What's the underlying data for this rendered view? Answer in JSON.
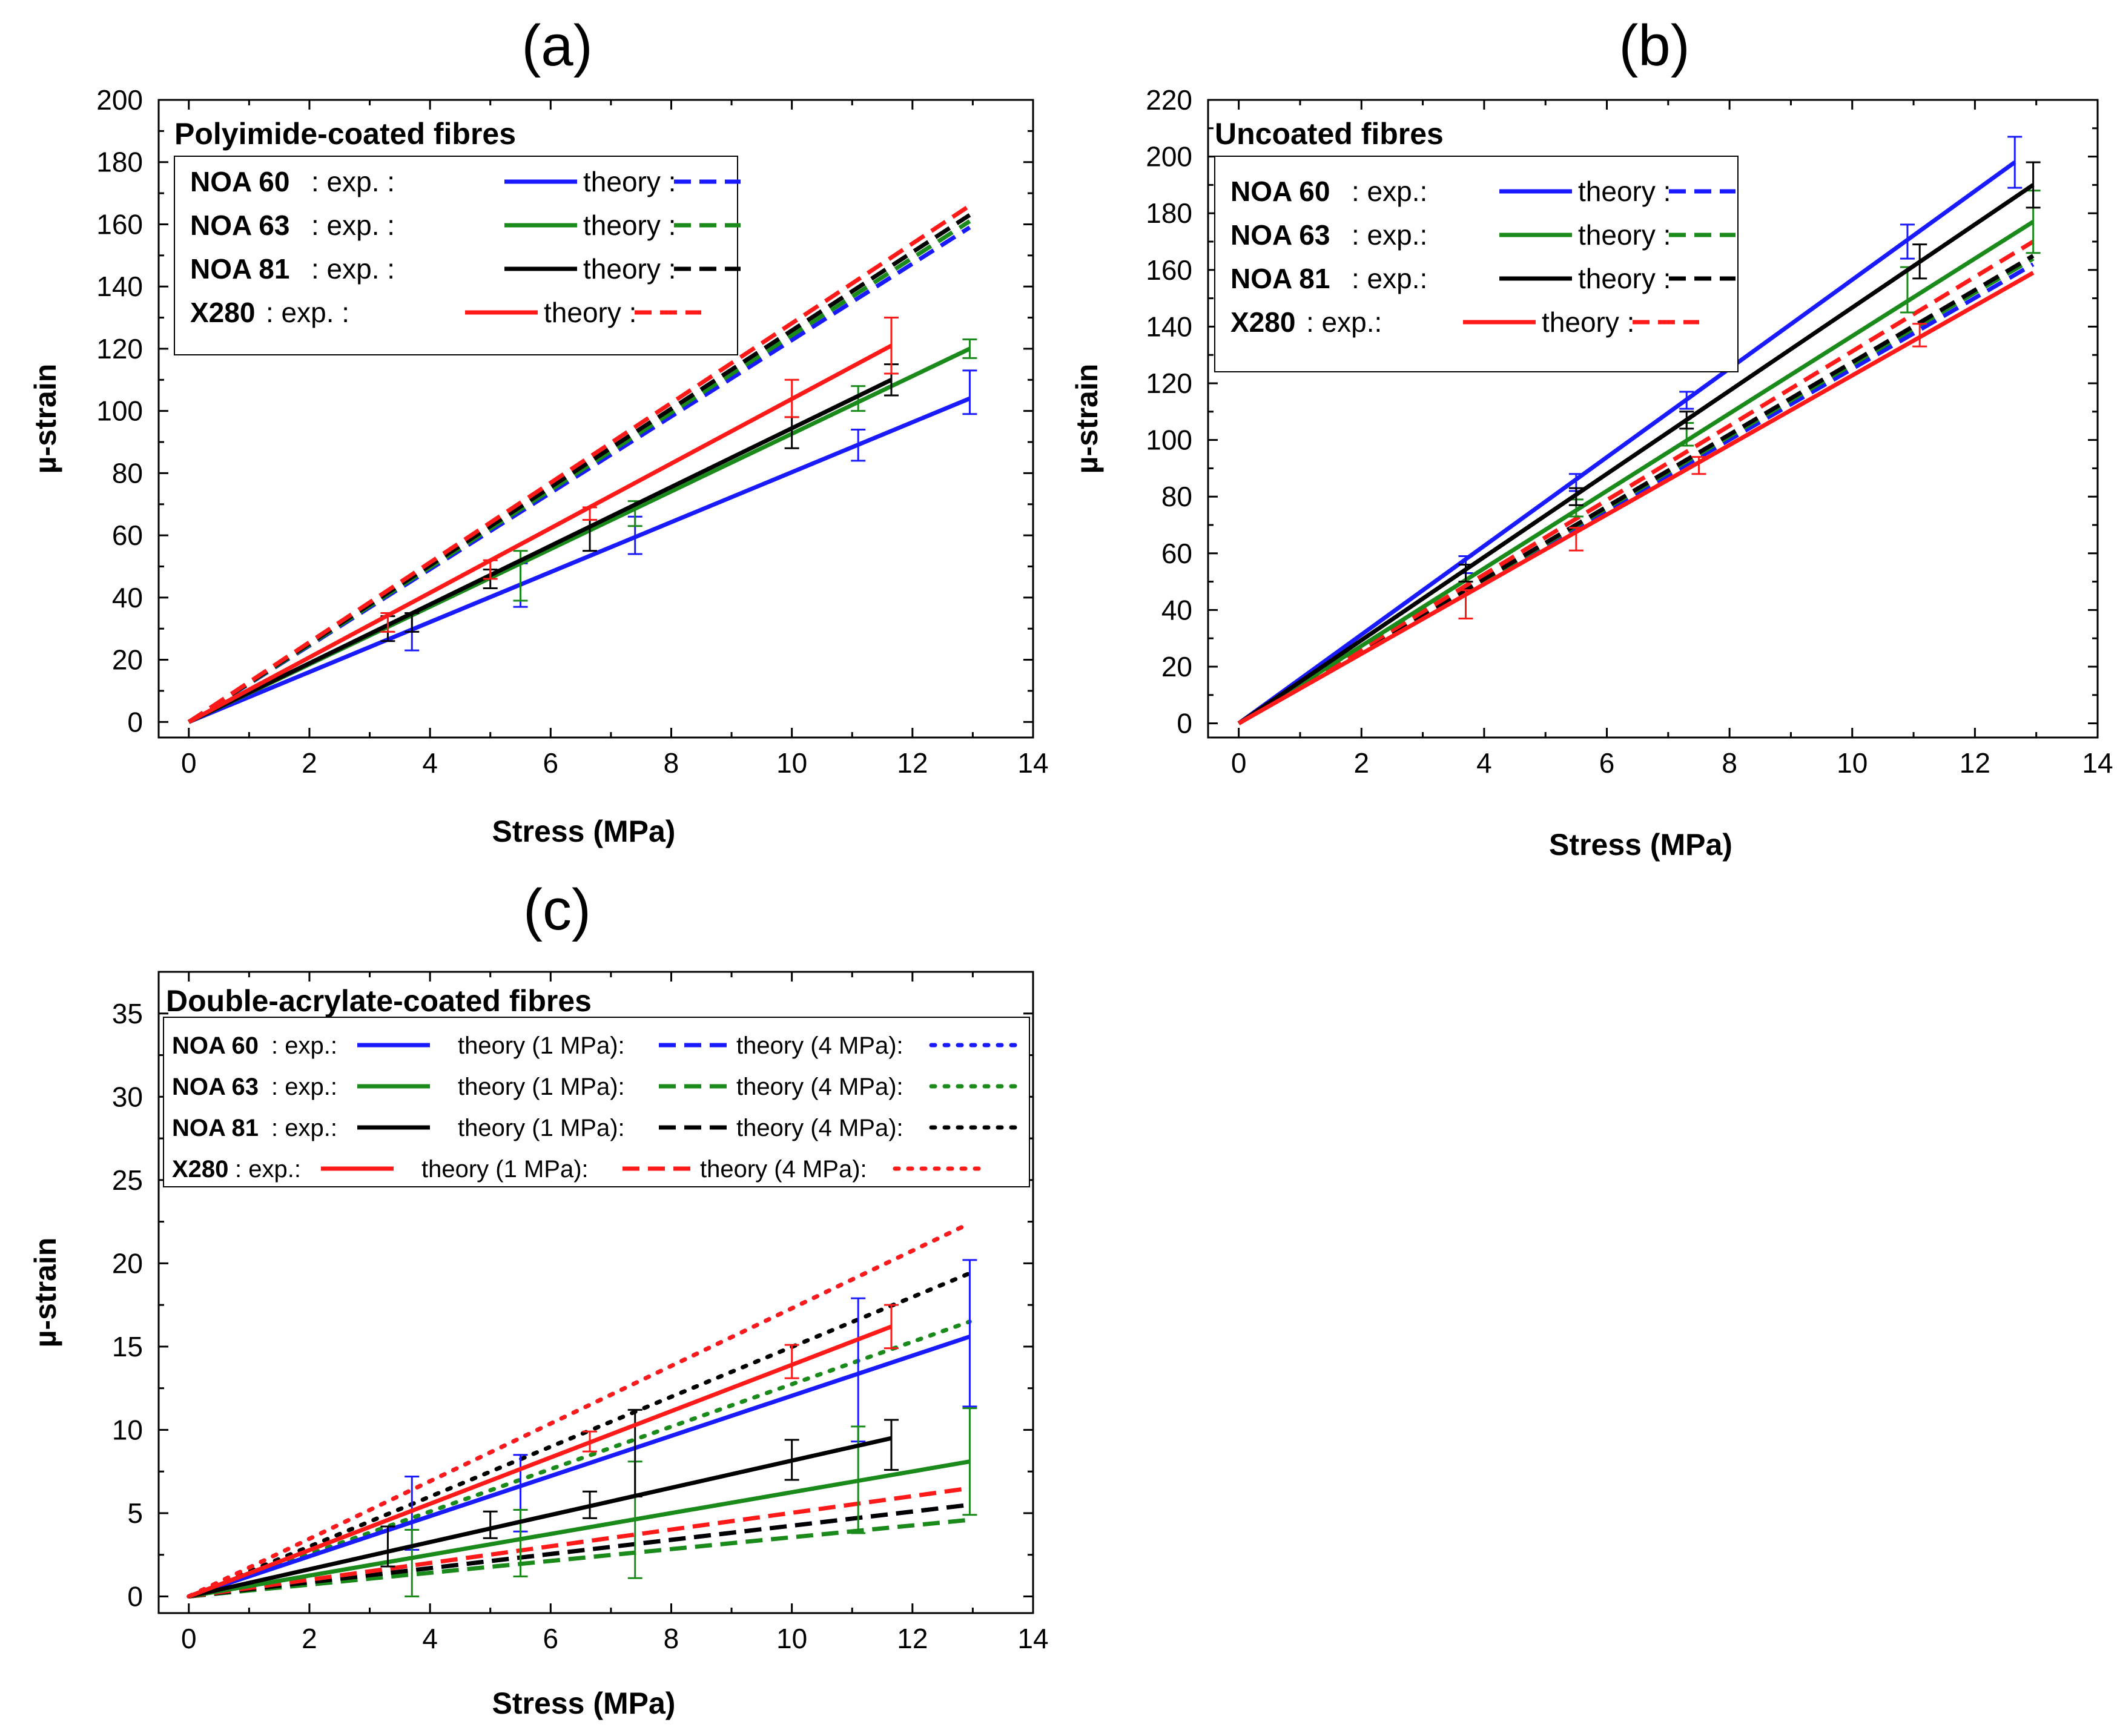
{
  "chart_data": [
    {
      "id": "a",
      "type": "line",
      "panel_label": "(a)",
      "title": "Polyimide-coated fibres",
      "xlabel": "Stress (MPa)",
      "ylabel": "µ-strain",
      "xlim": [
        -0.5,
        14
      ],
      "ylim": [
        -5,
        200
      ],
      "xticks": [
        0,
        2,
        4,
        6,
        8,
        10,
        12,
        14
      ],
      "yticks": [
        0,
        20,
        40,
        60,
        80,
        100,
        120,
        140,
        160,
        180,
        200
      ],
      "legend": [
        {
          "name": "NOA 60",
          "exp": ": exp. :",
          "theory": "theory :",
          "color": "#1a1aff"
        },
        {
          "name": "NOA 63",
          "exp": ": exp. :",
          "theory": "theory :",
          "color": "#1a8a1a"
        },
        {
          "name": "NOA 81",
          "exp": ": exp. :",
          "theory": "theory :",
          "color": "#000000"
        },
        {
          "name": "X280",
          "exp": ": exp. :",
          "theory": "theory :",
          "color": "#ff1a1a"
        }
      ],
      "series": [
        {
          "name": "NOA 60 exp.",
          "color": "#1a1aff",
          "style": "solid",
          "x": [
            0,
            12.95
          ],
          "y": [
            0,
            104
          ],
          "errorbars": [
            {
              "x": 3.7,
              "y": 29,
              "err": 6
            },
            {
              "x": 5.5,
              "y": 44,
              "err": 7
            },
            {
              "x": 7.4,
              "y": 60,
              "err": 6
            },
            {
              "x": 11.1,
              "y": 89,
              "err": 5
            },
            {
              "x": 12.95,
              "y": 106,
              "err": 7
            }
          ]
        },
        {
          "name": "NOA 63 exp.",
          "color": "#1a8a1a",
          "style": "solid",
          "x": [
            0,
            12.95
          ],
          "y": [
            0,
            120
          ],
          "errorbars": [
            {
              "x": 5.5,
              "y": 47,
              "err": 8
            },
            {
              "x": 7.4,
              "y": 67,
              "err": 4
            },
            {
              "x": 11.1,
              "y": 104,
              "err": 4
            },
            {
              "x": 12.95,
              "y": 120,
              "err": 3
            }
          ]
        },
        {
          "name": "NOA 81 exp.",
          "color": "#000000",
          "style": "solid",
          "x": [
            0,
            11.65
          ],
          "y": [
            0,
            110
          ],
          "errorbars": [
            {
              "x": 3.3,
              "y": 30,
              "err": 4
            },
            {
              "x": 3.7,
              "y": 32,
              "err": 3
            },
            {
              "x": 5,
              "y": 46,
              "err": 3
            },
            {
              "x": 6.65,
              "y": 60,
              "err": 5
            },
            {
              "x": 10,
              "y": 93,
              "err": 5
            },
            {
              "x": 11.65,
              "y": 110,
              "err": 5
            }
          ]
        },
        {
          "name": "X280 exp.",
          "color": "#ff1a1a",
          "style": "solid",
          "x": [
            0,
            11.65
          ],
          "y": [
            0,
            121
          ],
          "errorbars": [
            {
              "x": 3.3,
              "y": 32,
              "err": 3
            },
            {
              "x": 5,
              "y": 49,
              "err": 3
            },
            {
              "x": 6.65,
              "y": 67,
              "err": 2
            },
            {
              "x": 10,
              "y": 104,
              "err": 6
            },
            {
              "x": 11.65,
              "y": 121,
              "err": 9
            }
          ]
        },
        {
          "name": "NOA 60 theory",
          "color": "#1a1aff",
          "style": "dash",
          "x": [
            0,
            12.95
          ],
          "y": [
            0,
            159
          ]
        },
        {
          "name": "NOA 63 theory",
          "color": "#1a8a1a",
          "style": "dash",
          "x": [
            0,
            12.95
          ],
          "y": [
            0,
            161
          ]
        },
        {
          "name": "NOA 81 theory",
          "color": "#000000",
          "style": "dash",
          "x": [
            0,
            12.95
          ],
          "y": [
            0,
            163
          ]
        },
        {
          "name": "X280 theory",
          "color": "#ff1a1a",
          "style": "dash",
          "x": [
            0,
            12.95
          ],
          "y": [
            0,
            166
          ]
        }
      ]
    },
    {
      "id": "b",
      "type": "line",
      "panel_label": "(b)",
      "title": "Uncoated fibres",
      "xlabel": "Stress (MPa)",
      "ylabel": "µ-strain",
      "xlim": [
        -0.5,
        14
      ],
      "ylim": [
        -5,
        220
      ],
      "xticks": [
        0,
        2,
        4,
        6,
        8,
        10,
        12,
        14
      ],
      "yticks": [
        0,
        20,
        40,
        60,
        80,
        100,
        120,
        140,
        160,
        180,
        200,
        220
      ],
      "legend": [
        {
          "name": "NOA 60",
          "exp": ": exp.:",
          "theory": "theory :",
          "color": "#1a1aff"
        },
        {
          "name": "NOA 63",
          "exp": ": exp.:",
          "theory": "theory :",
          "color": "#1a8a1a"
        },
        {
          "name": "NOA 81",
          "exp": ": exp.:",
          "theory": "theory :",
          "color": "#000000"
        },
        {
          "name": "X280",
          "exp": ": exp.:",
          "theory": "theory :",
          "color": "#ff1a1a"
        }
      ],
      "series": [
        {
          "name": "NOA 60 exp.",
          "color": "#1a1aff",
          "style": "solid",
          "x": [
            0,
            12.65
          ],
          "y": [
            0,
            198
          ],
          "errorbars": [
            {
              "x": 3.7,
              "y": 56,
              "err": 3
            },
            {
              "x": 5.5,
              "y": 85,
              "err": 3
            },
            {
              "x": 7.3,
              "y": 114,
              "err": 3
            },
            {
              "x": 10.9,
              "y": 170,
              "err": 6
            },
            {
              "x": 12.65,
              "y": 198,
              "err": 9
            }
          ]
        },
        {
          "name": "NOA 63 exp.",
          "color": "#1a8a1a",
          "style": "solid",
          "x": [
            0,
            12.95
          ],
          "y": [
            0,
            177
          ],
          "errorbars": [
            {
              "x": 5.5,
              "y": 76,
              "err": 3
            },
            {
              "x": 7.3,
              "y": 102,
              "err": 4
            },
            {
              "x": 10.9,
              "y": 153,
              "err": 8
            },
            {
              "x": 12.95,
              "y": 177,
              "err": 11
            }
          ]
        },
        {
          "name": "NOA 81 exp.",
          "color": "#000000",
          "style": "solid",
          "x": [
            0,
            12.95
          ],
          "y": [
            0,
            190
          ],
          "errorbars": [
            {
              "x": 3.7,
              "y": 53,
              "err": 3
            },
            {
              "x": 5.5,
              "y": 80,
              "err": 3
            },
            {
              "x": 7.3,
              "y": 107,
              "err": 3
            },
            {
              "x": 11.1,
              "y": 163,
              "err": 6
            },
            {
              "x": 12.95,
              "y": 190,
              "err": 8
            }
          ]
        },
        {
          "name": "X280 exp.",
          "color": "#ff1a1a",
          "style": "solid",
          "x": [
            0,
            12.95
          ],
          "y": [
            0,
            159
          ],
          "errorbars": [
            {
              "x": 3.7,
              "y": 42,
              "err": 5
            },
            {
              "x": 5.5,
              "y": 65,
              "err": 4
            },
            {
              "x": 7.5,
              "y": 91,
              "err": 3
            },
            {
              "x": 11.1,
              "y": 137,
              "err": 4
            }
          ]
        },
        {
          "name": "NOA 60 theory",
          "color": "#1a1aff",
          "style": "dash",
          "x": [
            0,
            12.95
          ],
          "y": [
            0,
            162
          ]
        },
        {
          "name": "NOA 63 theory",
          "color": "#1a8a1a",
          "style": "dash",
          "x": [
            0,
            12.95
          ],
          "y": [
            0,
            164
          ]
        },
        {
          "name": "NOA 81 theory",
          "color": "#000000",
          "style": "dash",
          "x": [
            0,
            12.95
          ],
          "y": [
            0,
            165
          ]
        },
        {
          "name": "X280 theory",
          "color": "#ff1a1a",
          "style": "dash",
          "x": [
            0,
            12.95
          ],
          "y": [
            0,
            170
          ]
        }
      ]
    },
    {
      "id": "c",
      "type": "line",
      "panel_label": "(c)",
      "title": "Double-acrylate-coated fibres",
      "xlabel": "Stress (MPa)",
      "ylabel": "µ-strain",
      "xlim": [
        -0.5,
        14
      ],
      "ylim": [
        -1,
        37.5
      ],
      "xticks": [
        0,
        2,
        4,
        6,
        8,
        10,
        12,
        14
      ],
      "yticks": [
        0,
        5,
        10,
        15,
        20,
        25,
        30,
        35
      ],
      "legend": [
        {
          "name": "NOA 60",
          "exp": ": exp.:",
          "theory1": "theory (1 MPa):",
          "theory4": "theory (4 MPa):",
          "color": "#1a1aff"
        },
        {
          "name": "NOA 63",
          "exp": ": exp.:",
          "theory1": "theory (1 MPa):",
          "theory4": "theory (4 MPa):",
          "color": "#1a8a1a"
        },
        {
          "name": "NOA 81",
          "exp": ": exp.:",
          "theory1": "theory  (1 MPa):",
          "theory4": "theory (4 MPa):",
          "color": "#000000"
        },
        {
          "name": "X280",
          "exp": ": exp.:",
          "theory1": "theory (1 MPa):",
          "theory4": "theory (4 MPa):",
          "color": "#ff1a1a"
        }
      ],
      "series": [
        {
          "name": "NOA 60 exp.",
          "color": "#1a1aff",
          "style": "solid",
          "x": [
            0,
            12.95
          ],
          "y": [
            0,
            15.6
          ],
          "errorbars": [
            {
              "x": 3.7,
              "y": 5,
              "err": 2.2
            },
            {
              "x": 5.5,
              "y": 6.2,
              "err": 2.3
            },
            {
              "x": 11.1,
              "y": 13.6,
              "err": 4.3
            },
            {
              "x": 12.95,
              "y": 15.8,
              "err": 4.4
            }
          ]
        },
        {
          "name": "NOA 63 exp.",
          "color": "#1a8a1a",
          "style": "solid",
          "x": [
            0,
            12.95
          ],
          "y": [
            0,
            8.1
          ],
          "errorbars": [
            {
              "x": 3.7,
              "y": 2,
              "err": 2
            },
            {
              "x": 5.5,
              "y": 3.2,
              "err": 2
            },
            {
              "x": 7.4,
              "y": 4.6,
              "err": 3.5
            },
            {
              "x": 11.1,
              "y": 7,
              "err": 3.2
            },
            {
              "x": 12.95,
              "y": 8.1,
              "err": 3.2
            }
          ]
        },
        {
          "name": "NOA 81 exp.",
          "color": "#000000",
          "style": "solid",
          "x": [
            0,
            11.65
          ],
          "y": [
            0,
            9.5
          ],
          "errorbars": [
            {
              "x": 3.3,
              "y": 3,
              "err": 1.2
            },
            {
              "x": 5,
              "y": 4.3,
              "err": 0.8
            },
            {
              "x": 6.65,
              "y": 5.5,
              "err": 0.8
            },
            {
              "x": 7.4,
              "y": 8.6,
              "err": 2.6
            },
            {
              "x": 10,
              "y": 8.2,
              "err": 1.2
            },
            {
              "x": 11.65,
              "y": 9.1,
              "err": 1.5
            }
          ]
        },
        {
          "name": "X280 exp.",
          "color": "#ff1a1a",
          "style": "solid",
          "x": [
            0,
            11.65
          ],
          "y": [
            0,
            16.2
          ],
          "errorbars": [
            {
              "x": 6.65,
              "y": 9.3,
              "err": 0.6
            },
            {
              "x": 10,
              "y": 14.1,
              "err": 1
            },
            {
              "x": 11.65,
              "y": 16.2,
              "err": 1.3
            }
          ]
        },
        {
          "name": "NOA 60 theory (1 MPa)",
          "color": "#1a1aff",
          "style": "dash",
          "x": [
            0,
            12.95
          ],
          "y": [
            0,
            5.5
          ]
        },
        {
          "name": "NOA 63 theory (1 MPa)",
          "color": "#1a8a1a",
          "style": "dash",
          "x": [
            0,
            12.95
          ],
          "y": [
            0,
            4.6
          ]
        },
        {
          "name": "NOA 81 theory (1 MPa)",
          "color": "#000000",
          "style": "dash",
          "x": [
            0,
            12.95
          ],
          "y": [
            0,
            5.5
          ]
        },
        {
          "name": "X280 theory (1 MPa)",
          "color": "#ff1a1a",
          "style": "dash",
          "x": [
            0,
            12.95
          ],
          "y": [
            0,
            6.5
          ]
        },
        {
          "name": "NOA 60 theory (4 MPa)",
          "color": "#1a1aff",
          "style": "dot",
          "x": [
            0,
            12.95
          ],
          "y": [
            0,
            22.4
          ]
        },
        {
          "name": "NOA 63 theory (4 MPa)",
          "color": "#1a8a1a",
          "style": "dot",
          "x": [
            0,
            12.95
          ],
          "y": [
            0,
            16.5
          ]
        },
        {
          "name": "NOA 81 theory (4 MPa)",
          "color": "#000000",
          "style": "dot",
          "x": [
            0,
            12.95
          ],
          "y": [
            0,
            19.4
          ]
        },
        {
          "name": "X280 theory (4 MPa)",
          "color": "#ff1a1a",
          "style": "dot",
          "x": [
            0,
            12.95
          ],
          "y": [
            0,
            22.4
          ]
        }
      ]
    }
  ]
}
